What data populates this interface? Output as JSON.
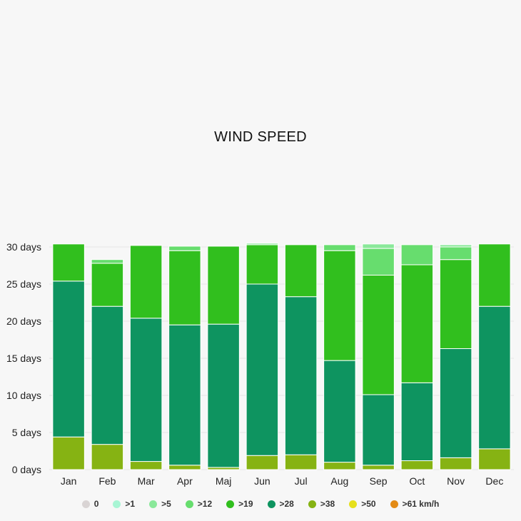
{
  "chart_data": {
    "type": "bar",
    "stacked": true,
    "title": "WIND SPEED",
    "xlabel": "",
    "ylabel": "",
    "ylim": [
      0,
      30
    ],
    "y_ticks": [
      0,
      5,
      10,
      15,
      20,
      25,
      30
    ],
    "y_tick_suffix": " days",
    "grid": true,
    "legend_position": "bottom",
    "categories": [
      "Jan",
      "Feb",
      "Mar",
      "Apr",
      "Maj",
      "Jun",
      "Jul",
      "Aug",
      "Sep",
      "Oct",
      "Nov",
      "Dec"
    ],
    "series": [
      {
        "name": "0",
        "color": "#d9d4d4",
        "values": [
          0,
          0,
          0,
          0,
          0,
          0,
          0,
          0,
          0,
          0,
          0,
          0
        ]
      },
      {
        "name": ">1",
        "color": "#a8f5d4",
        "values": [
          0,
          0,
          0,
          0,
          0,
          0,
          0,
          0,
          0,
          0,
          0,
          0
        ]
      },
      {
        "name": ">5",
        "color": "#8ae89a",
        "values": [
          0,
          0,
          0,
          0,
          0,
          0.2,
          0,
          0,
          0.6,
          0,
          0.3,
          0
        ]
      },
      {
        "name": ">12",
        "color": "#67dd6e",
        "values": [
          0,
          0.5,
          0,
          0.6,
          0,
          0,
          0,
          0.8,
          3.6,
          2.7,
          1.7,
          0
        ]
      },
      {
        "name": ">19",
        "color": "#31bf1e",
        "values": [
          5,
          5.8,
          9.8,
          10,
          10.5,
          5.3,
          7,
          14.8,
          16.1,
          15.9,
          12,
          8.4
        ]
      },
      {
        "name": ">28",
        "color": "#0e9460",
        "values": [
          21,
          18.6,
          19.3,
          18.9,
          19.3,
          23.1,
          21.3,
          13.7,
          9.5,
          10.5,
          14.7,
          19.2
        ]
      },
      {
        "name": ">38",
        "color": "#86b313",
        "values": [
          4.4,
          3.4,
          1.1,
          0.6,
          0.3,
          1.9,
          2,
          1,
          0.6,
          1.2,
          1.6,
          2.8
        ]
      },
      {
        "name": ">50",
        "color": "#e6e01c",
        "values": [
          0,
          0,
          0,
          0,
          0,
          0,
          0,
          0,
          0,
          0,
          0,
          0
        ]
      },
      {
        "name": ">61 km/h",
        "color": "#e38b16",
        "values": [
          0,
          0,
          0,
          0,
          0,
          0,
          0,
          0,
          0,
          0,
          0,
          0
        ]
      }
    ]
  }
}
